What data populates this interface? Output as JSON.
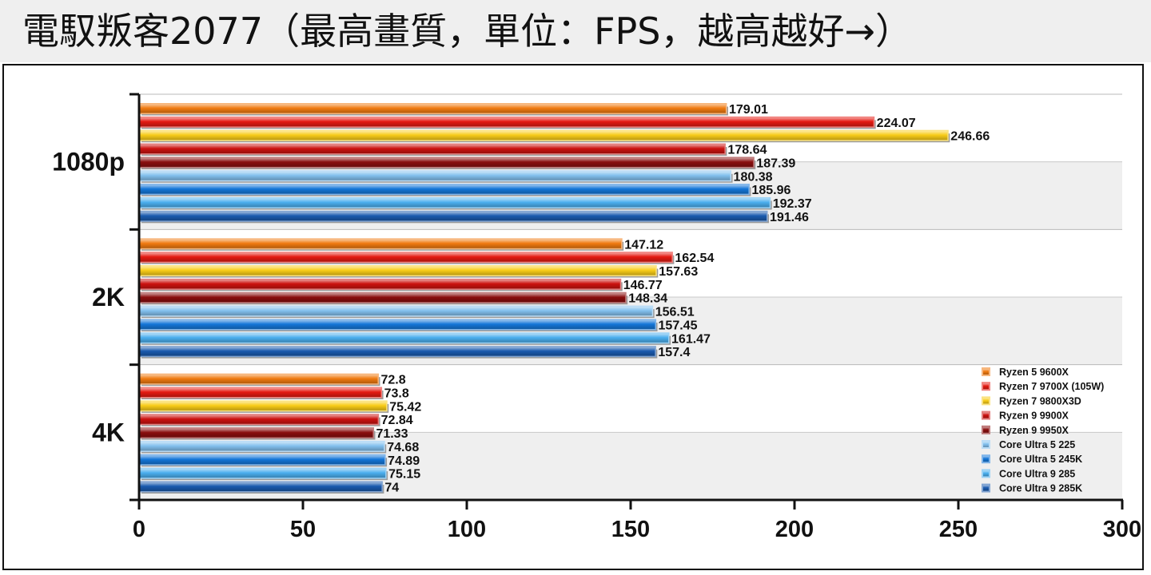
{
  "title": "電馭叛客2077（最高畫質，單位：FPS，越高越好→）",
  "colors": {
    "title_background": "#efefef",
    "band_shading": "#efefef",
    "axis": "#111111",
    "text": "#111111"
  },
  "chart_data": {
    "type": "bar",
    "orientation": "horizontal",
    "title": "電馭叛客2077（最高畫質，單位：FPS，越高越好→）",
    "categories": [
      "1080p",
      "2K",
      "4K"
    ],
    "xlim": [
      0,
      300
    ],
    "xticks": [
      0,
      50,
      100,
      150,
      200,
      250,
      300
    ],
    "grid": "horizontal band lines",
    "legend_position": "bottom-right",
    "series": [
      {
        "name": "Ryzen 5 9600X",
        "color": "#f07a10",
        "values": [
          179.01,
          147.12,
          72.8
        ]
      },
      {
        "name": "Ryzen 7 9700X (105W)",
        "color": "#e41a12",
        "values": [
          224.07,
          162.54,
          73.8
        ]
      },
      {
        "name": "Ryzen 7 9800X3D",
        "color": "#f8cc18",
        "values": [
          246.66,
          157.63,
          75.42
        ]
      },
      {
        "name": "Ryzen 9 9900X",
        "color": "#cc1210",
        "values": [
          178.64,
          146.77,
          72.84
        ]
      },
      {
        "name": "Ryzen 9 9950X",
        "color": "#8a0e0e",
        "values": [
          187.39,
          148.34,
          71.33
        ]
      },
      {
        "name": "Core Ultra 5 225",
        "color": "#82c0ee",
        "values": [
          180.38,
          156.51,
          74.68
        ]
      },
      {
        "name": "Core Ultra 5 245K",
        "color": "#1476d8",
        "values": [
          185.96,
          157.45,
          74.89
        ]
      },
      {
        "name": "Core Ultra 9 285",
        "color": "#4aaeee",
        "values": [
          192.37,
          161.47,
          75.15
        ]
      },
      {
        "name": "Core Ultra 9 285K",
        "color": "#1a5aae",
        "values": [
          191.46,
          157.4,
          74
        ]
      }
    ],
    "value_labels": [
      [
        "179.01",
        "224.07",
        "246.66",
        "178.64",
        "187.39",
        "180.38",
        "185.96",
        "192.37",
        "191.46"
      ],
      [
        "147.12",
        "162.54",
        "157.63",
        "146.77",
        "148.34",
        "156.51",
        "157.45",
        "161.47",
        "157.4"
      ],
      [
        "72.8",
        "73.8",
        "75.42",
        "72.84",
        "71.33",
        "74.68",
        "74.89",
        "75.15",
        "74"
      ]
    ]
  }
}
